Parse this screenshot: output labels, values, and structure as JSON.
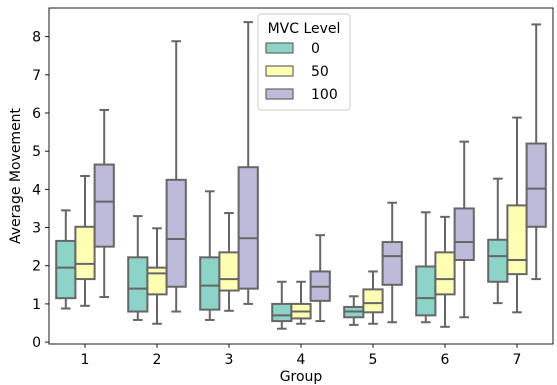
{
  "chart_data": {
    "type": "box",
    "xlabel": "Group",
    "ylabel": "Average Movement",
    "ylim": [
      -0.05,
      8.75
    ],
    "yticks": [
      0,
      1,
      2,
      3,
      4,
      5,
      6,
      7,
      8
    ],
    "categories": [
      "1",
      "2",
      "3",
      "4",
      "5",
      "6",
      "7"
    ],
    "legend": {
      "title": "MVC Level",
      "placement": "top-center"
    },
    "series": [
      {
        "name": "0",
        "color": "#8dd3c7",
        "boxes": [
          {
            "whislo": 0.88,
            "q1": 1.15,
            "med": 1.95,
            "q3": 2.65,
            "whishi": 3.45
          },
          {
            "whislo": 0.58,
            "q1": 0.8,
            "med": 1.4,
            "q3": 2.22,
            "whishi": 3.3
          },
          {
            "whislo": 0.58,
            "q1": 0.85,
            "med": 1.48,
            "q3": 2.22,
            "whishi": 3.95
          },
          {
            "whislo": 0.35,
            "q1": 0.55,
            "med": 0.7,
            "q3": 1.0,
            "whishi": 1.58
          },
          {
            "whislo": 0.45,
            "q1": 0.65,
            "med": 0.8,
            "q3": 0.92,
            "whishi": 1.2
          },
          {
            "whislo": 0.52,
            "q1": 0.7,
            "med": 1.15,
            "q3": 1.98,
            "whishi": 3.4
          },
          {
            "whislo": 1.02,
            "q1": 1.58,
            "med": 2.25,
            "q3": 2.68,
            "whishi": 4.28
          }
        ]
      },
      {
        "name": "50",
        "color": "#ffffb3",
        "boxes": [
          {
            "whislo": 0.95,
            "q1": 1.65,
            "med": 2.05,
            "q3": 3.02,
            "whishi": 4.35
          },
          {
            "whislo": 0.48,
            "q1": 1.25,
            "med": 1.8,
            "q3": 1.95,
            "whishi": 2.98
          },
          {
            "whislo": 0.82,
            "q1": 1.35,
            "med": 1.65,
            "q3": 2.35,
            "whishi": 3.38
          },
          {
            "whislo": 0.48,
            "q1": 0.62,
            "med": 0.8,
            "q3": 1.0,
            "whishi": 1.58
          },
          {
            "whislo": 0.48,
            "q1": 0.78,
            "med": 1.02,
            "q3": 1.38,
            "whishi": 1.85
          },
          {
            "whislo": 0.4,
            "q1": 1.25,
            "med": 1.65,
            "q3": 2.35,
            "whishi": 3.28
          },
          {
            "whislo": 0.78,
            "q1": 1.78,
            "med": 2.15,
            "q3": 3.58,
            "whishi": 5.88
          }
        ]
      },
      {
        "name": "100",
        "color": "#bebada",
        "boxes": [
          {
            "whislo": 1.18,
            "q1": 2.5,
            "med": 3.68,
            "q3": 4.65,
            "whishi": 6.08
          },
          {
            "whislo": 0.8,
            "q1": 1.45,
            "med": 2.7,
            "q3": 4.25,
            "whishi": 7.88
          },
          {
            "whislo": 1.0,
            "q1": 1.4,
            "med": 2.72,
            "q3": 4.58,
            "whishi": 8.38
          },
          {
            "whislo": 0.55,
            "q1": 1.08,
            "med": 1.45,
            "q3": 1.85,
            "whishi": 2.8
          },
          {
            "whislo": 0.52,
            "q1": 1.5,
            "med": 2.25,
            "q3": 2.62,
            "whishi": 3.65
          },
          {
            "whislo": 0.65,
            "q1": 2.15,
            "med": 2.62,
            "q3": 3.5,
            "whishi": 5.25
          },
          {
            "whislo": 1.65,
            "q1": 3.02,
            "med": 4.02,
            "q3": 5.2,
            "whishi": 8.32
          }
        ]
      }
    ]
  }
}
